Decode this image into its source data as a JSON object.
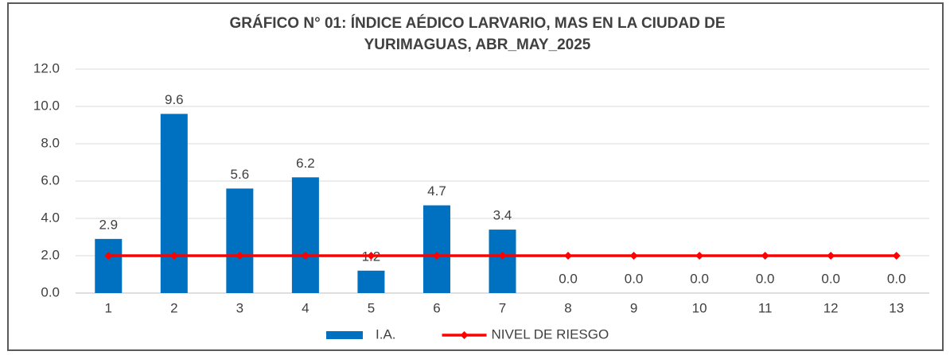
{
  "chart_data": {
    "type": "bar",
    "title": [
      "GRÁFICO N° 01: ÍNDICE AÉDICO LARVARIO, MAS EN LA CIUDAD DE",
      "YURIMAGUAS, ABR_MAY_2025"
    ],
    "categories": [
      "1",
      "2",
      "3",
      "4",
      "5",
      "6",
      "7",
      "8",
      "9",
      "10",
      "11",
      "12",
      "13"
    ],
    "series": [
      {
        "name": "I.A.",
        "type": "bar",
        "color": "#0070c0",
        "values": [
          2.9,
          9.6,
          5.6,
          6.2,
          1.2,
          4.7,
          3.4,
          0,
          0,
          0,
          0,
          0,
          0
        ],
        "value_labels": [
          "2.9",
          "9.6",
          "5.6",
          "6.2",
          "1.2",
          "4.7",
          "3.4",
          "0.0",
          "0.0",
          "0.0",
          "0.0",
          "0.0",
          "0.0"
        ]
      },
      {
        "name": "NIVEL DE RIESGO",
        "type": "line",
        "color": "#ff0000",
        "values": [
          2,
          2,
          2,
          2,
          2,
          2,
          2,
          2,
          2,
          2,
          2,
          2,
          2
        ]
      }
    ],
    "ylim": [
      0,
      12
    ],
    "yticks": [
      {
        "value": 0,
        "label": "0.0"
      },
      {
        "value": 2,
        "label": "2.0"
      },
      {
        "value": 4,
        "label": "4.0"
      },
      {
        "value": 6,
        "label": "6.0"
      },
      {
        "value": 8,
        "label": "8.0"
      },
      {
        "value": 10,
        "label": "10.0"
      },
      {
        "value": 12,
        "label": "12.0"
      }
    ],
    "grid": true,
    "legend": "bottom"
  }
}
